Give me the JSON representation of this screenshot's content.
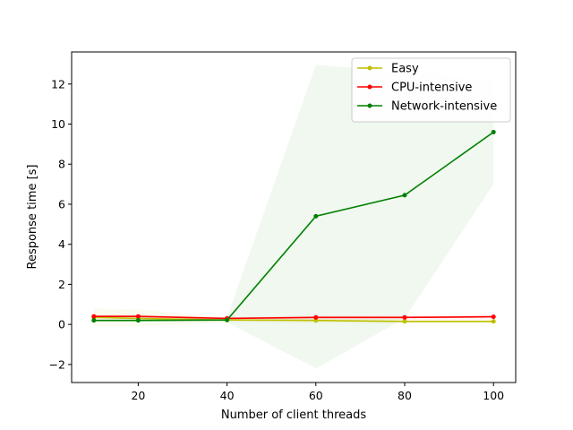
{
  "chart_data": {
    "type": "line",
    "title": "",
    "xlabel": "Number of client threads",
    "ylabel": "Response time [s]",
    "x": [
      10,
      20,
      40,
      60,
      80,
      100
    ],
    "xlim": [
      5,
      105
    ],
    "ylim": [
      -2.9,
      13.6
    ],
    "xticks": [
      20,
      40,
      60,
      80,
      100
    ],
    "yticks": [
      -2,
      0,
      2,
      4,
      6,
      8,
      10,
      12
    ],
    "grid": false,
    "legend": "top-right",
    "series": [
      {
        "name": "Easy",
        "color": "#bfbf00",
        "values": [
          0.35,
          0.3,
          0.22,
          0.2,
          0.15,
          0.15
        ],
        "lower": [
          -0.1,
          -0.1,
          0.1,
          0.05,
          0.05,
          0.05
        ],
        "upper": [
          0.8,
          0.75,
          0.35,
          0.35,
          0.25,
          0.25
        ]
      },
      {
        "name": "CPU-intensive",
        "color": "#ff0000",
        "values": [
          0.4,
          0.4,
          0.3,
          0.35,
          0.35,
          0.38
        ],
        "lower": [
          0.3,
          0.3,
          0.25,
          0.25,
          0.25,
          0.28
        ],
        "upper": [
          0.5,
          0.5,
          0.35,
          0.45,
          0.45,
          0.48
        ]
      },
      {
        "name": "Network-intensive",
        "color": "#008000",
        "values": [
          0.2,
          0.2,
          0.22,
          5.4,
          6.45,
          9.6
        ],
        "lower": [
          0.15,
          0.15,
          0.1,
          -2.2,
          0.3,
          7.0
        ],
        "upper": [
          0.25,
          0.25,
          0.35,
          12.95,
          12.6,
          12.2
        ]
      }
    ]
  }
}
